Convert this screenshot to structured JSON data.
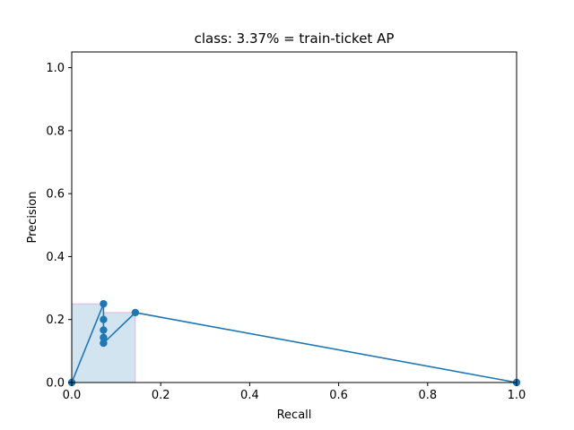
{
  "chart_data": {
    "type": "line",
    "title": "class: 3.37% = train-ticket AP",
    "xlabel": "Recall",
    "ylabel": "Precision",
    "xlim": [
      0.0,
      1.0
    ],
    "ylim": [
      0.0,
      1.05
    ],
    "x_ticks": [
      "0.0",
      "0.2",
      "0.4",
      "0.6",
      "0.8",
      "1.0"
    ],
    "y_ticks": [
      "0.0",
      "0.2",
      "0.4",
      "0.6",
      "0.8",
      "1.0"
    ],
    "grid": false,
    "series": [
      {
        "color": "#1f77b4",
        "marker": "circle",
        "points": [
          {
            "x": 0.0,
            "y": 0.0
          },
          {
            "x": 0.0714,
            "y": 0.25
          },
          {
            "x": 0.0714,
            "y": 0.2
          },
          {
            "x": 0.0714,
            "y": 0.1667
          },
          {
            "x": 0.0714,
            "y": 0.1429
          },
          {
            "x": 0.0714,
            "y": 0.125
          },
          {
            "x": 0.1429,
            "y": 0.2222
          },
          {
            "x": 1.0,
            "y": 0.0
          }
        ]
      }
    ],
    "interpolated_precision_area": {
      "fill_color": "#1f77b4",
      "fill_opacity": 0.2,
      "edge_color": "#e377c2",
      "points": [
        {
          "x": 0.0,
          "y": 0.0
        },
        {
          "x": 0.0,
          "y": 0.25
        },
        {
          "x": 0.0714,
          "y": 0.25
        },
        {
          "x": 0.0714,
          "y": 0.2222
        },
        {
          "x": 0.1429,
          "y": 0.2222
        },
        {
          "x": 0.1429,
          "y": 0.0
        }
      ]
    }
  }
}
